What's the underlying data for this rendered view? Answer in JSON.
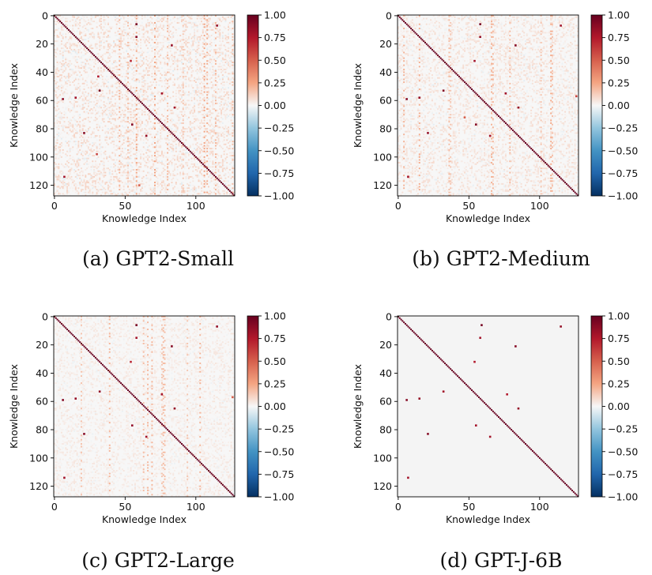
{
  "colors": {
    "negative_max": "#053061",
    "zero": "#f7f7f7",
    "positive_max": "#67001f",
    "background_zero": "#f4f4f4"
  },
  "colormap": "RdBu_r",
  "chart_data": [
    {
      "type": "heatmap",
      "caption": "(a) GPT2-Small",
      "title": "",
      "xlabel": "Knowledge Index",
      "ylabel": "Knowledge Index",
      "size": 128,
      "x_ticks": [
        0,
        50,
        100
      ],
      "y_ticks": [
        0,
        20,
        40,
        60,
        80,
        100,
        120
      ],
      "colorbar_ticks": [
        "1.00",
        "0.75",
        "0.50",
        "0.25",
        "0.00",
        "−0.25",
        "−0.50",
        "−0.75",
        "−1.00"
      ],
      "vlim": [
        -1.0,
        1.0
      ],
      "diagonal_value": 1.0,
      "background_noise": 0.12,
      "seed": 11,
      "highlights": [
        [
          6,
          58,
          0.95
        ],
        [
          7,
          115,
          0.85
        ],
        [
          15,
          58,
          0.9
        ],
        [
          21,
          83,
          0.85
        ],
        [
          32,
          54,
          0.7
        ],
        [
          43,
          31,
          0.75
        ],
        [
          53,
          32,
          0.95
        ],
        [
          55,
          76,
          0.8
        ],
        [
          58,
          15,
          0.8
        ],
        [
          59,
          6,
          0.85
        ],
        [
          65,
          85,
          0.8
        ],
        [
          77,
          55,
          0.9
        ],
        [
          83,
          21,
          0.9
        ],
        [
          85,
          65,
          0.85
        ],
        [
          114,
          7,
          0.8
        ],
        [
          98,
          30,
          0.6
        ],
        [
          120,
          60,
          0.5
        ]
      ]
    },
    {
      "type": "heatmap",
      "caption": "(b) GPT2-Medium",
      "title": "",
      "xlabel": "Knowledge Index",
      "ylabel": "Knowledge Index",
      "size": 128,
      "x_ticks": [
        0,
        50,
        100
      ],
      "y_ticks": [
        0,
        20,
        40,
        60,
        80,
        100,
        120
      ],
      "colorbar_ticks": [
        "1.00",
        "0.75",
        "0.50",
        "0.25",
        "0.00",
        "−0.25",
        "−0.50",
        "−0.75",
        "−1.00"
      ],
      "vlim": [
        -1.0,
        1.0
      ],
      "diagonal_value": 1.0,
      "background_noise": 0.09,
      "seed": 23,
      "highlights": [
        [
          6,
          58,
          0.95
        ],
        [
          7,
          115,
          0.8
        ],
        [
          15,
          58,
          0.85
        ],
        [
          21,
          83,
          0.9
        ],
        [
          32,
          54,
          0.8
        ],
        [
          53,
          32,
          0.9
        ],
        [
          55,
          76,
          0.8
        ],
        [
          58,
          15,
          0.85
        ],
        [
          59,
          6,
          0.9
        ],
        [
          65,
          85,
          0.85
        ],
        [
          77,
          55,
          0.9
        ],
        [
          83,
          21,
          0.85
        ],
        [
          85,
          65,
          0.8
        ],
        [
          114,
          7,
          0.8
        ],
        [
          57,
          126,
          0.6
        ],
        [
          72,
          47,
          0.5
        ]
      ]
    },
    {
      "type": "heatmap",
      "caption": "(c) GPT2-Large",
      "title": "",
      "xlabel": "Knowledge Index",
      "ylabel": "Knowledge Index",
      "size": 128,
      "x_ticks": [
        0,
        50,
        100
      ],
      "y_ticks": [
        0,
        20,
        40,
        60,
        80,
        100,
        120
      ],
      "colorbar_ticks": [
        "1.00",
        "0.75",
        "0.50",
        "0.25",
        "0.00",
        "−0.25",
        "−0.50",
        "−0.75",
        "−1.00"
      ],
      "vlim": [
        -1.0,
        1.0
      ],
      "diagonal_value": 1.0,
      "background_noise": 0.06,
      "seed": 37,
      "highlights": [
        [
          6,
          58,
          0.95
        ],
        [
          7,
          115,
          0.85
        ],
        [
          15,
          58,
          0.8
        ],
        [
          21,
          83,
          0.9
        ],
        [
          32,
          54,
          0.7
        ],
        [
          53,
          32,
          0.85
        ],
        [
          55,
          76,
          0.8
        ],
        [
          58,
          15,
          0.85
        ],
        [
          59,
          6,
          0.9
        ],
        [
          65,
          85,
          0.85
        ],
        [
          77,
          55,
          0.85
        ],
        [
          83,
          21,
          0.9
        ],
        [
          85,
          65,
          0.8
        ],
        [
          114,
          7,
          0.8
        ],
        [
          57,
          126,
          0.5
        ]
      ]
    },
    {
      "type": "heatmap",
      "caption": "(d) GPT-J-6B",
      "title": "",
      "xlabel": "Knowledge Index",
      "ylabel": "Knowledge Index",
      "size": 128,
      "x_ticks": [
        0,
        50,
        100
      ],
      "y_ticks": [
        0,
        20,
        40,
        60,
        80,
        100,
        120
      ],
      "colorbar_ticks": [
        "1.00",
        "0.75",
        "0.50",
        "0.25",
        "0.00",
        "−0.25",
        "−0.50",
        "−0.75",
        "−1.00"
      ],
      "vlim": [
        -1.0,
        1.0
      ],
      "diagonal_value": 1.0,
      "background_noise": 0.0,
      "seed": 5,
      "highlights": [
        [
          6,
          59,
          0.95
        ],
        [
          7,
          115,
          0.85
        ],
        [
          15,
          58,
          0.8
        ],
        [
          21,
          83,
          0.9
        ],
        [
          32,
          54,
          0.75
        ],
        [
          53,
          32,
          0.8
        ],
        [
          55,
          77,
          0.75
        ],
        [
          58,
          15,
          0.85
        ],
        [
          59,
          6,
          0.9
        ],
        [
          65,
          85,
          0.85
        ],
        [
          77,
          55,
          0.8
        ],
        [
          83,
          21,
          0.9
        ],
        [
          85,
          65,
          0.8
        ],
        [
          114,
          7,
          0.8
        ]
      ]
    }
  ]
}
